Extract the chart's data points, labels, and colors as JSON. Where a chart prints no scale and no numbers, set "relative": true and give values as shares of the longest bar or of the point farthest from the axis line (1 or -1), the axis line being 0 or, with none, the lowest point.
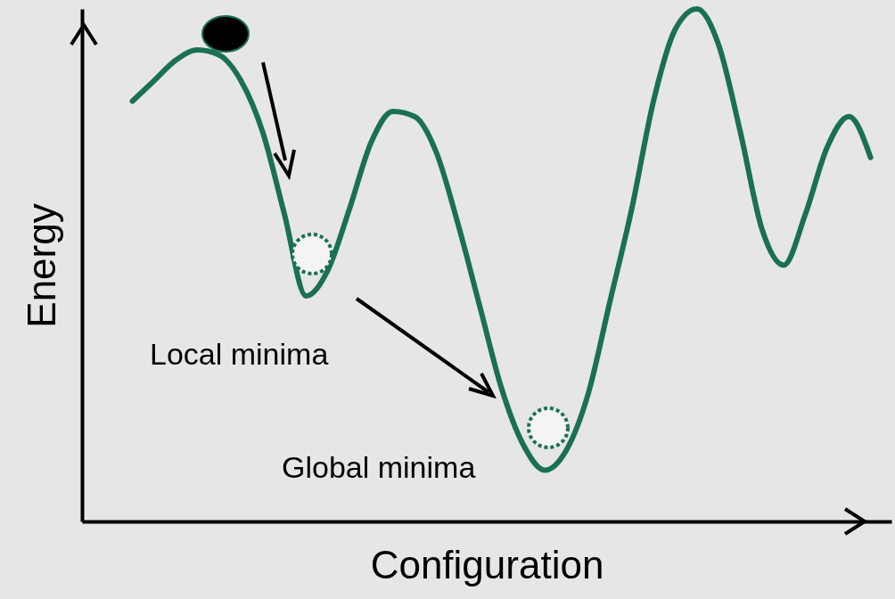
{
  "chart_data": {
    "type": "line",
    "relative": true,
    "xlabel": "Configuration",
    "ylabel": "Energy",
    "categories": [
      null,
      null,
      null,
      null,
      null,
      null,
      null,
      null,
      null,
      null,
      null,
      null,
      null,
      null,
      null,
      null,
      null,
      null,
      null,
      null,
      null,
      null,
      null,
      null,
      null,
      null,
      null,
      null,
      null,
      null,
      null,
      null,
      null,
      null,
      null
    ],
    "series": [
      {
        "color": "#1a7055",
        "values": [
          0.82,
          0.86,
          0.9,
          0.92,
          0.91,
          0.86,
          0.76,
          0.6,
          0.44,
          0.49,
          0.61,
          0.74,
          0.8,
          0.79,
          0.72,
          0.58,
          0.42,
          0.26,
          0.15,
          0.1,
          0.14,
          0.25,
          0.43,
          0.61,
          0.82,
          0.96,
          1,
          0.93,
          0.76,
          0.57,
          0.5,
          0.6,
          0.73,
          0.79,
          0.71
        ]
      }
    ],
    "annotations": [
      "Local minima",
      "Global minima"
    ],
    "marker": "none",
    "line_style": "solid"
  }
}
